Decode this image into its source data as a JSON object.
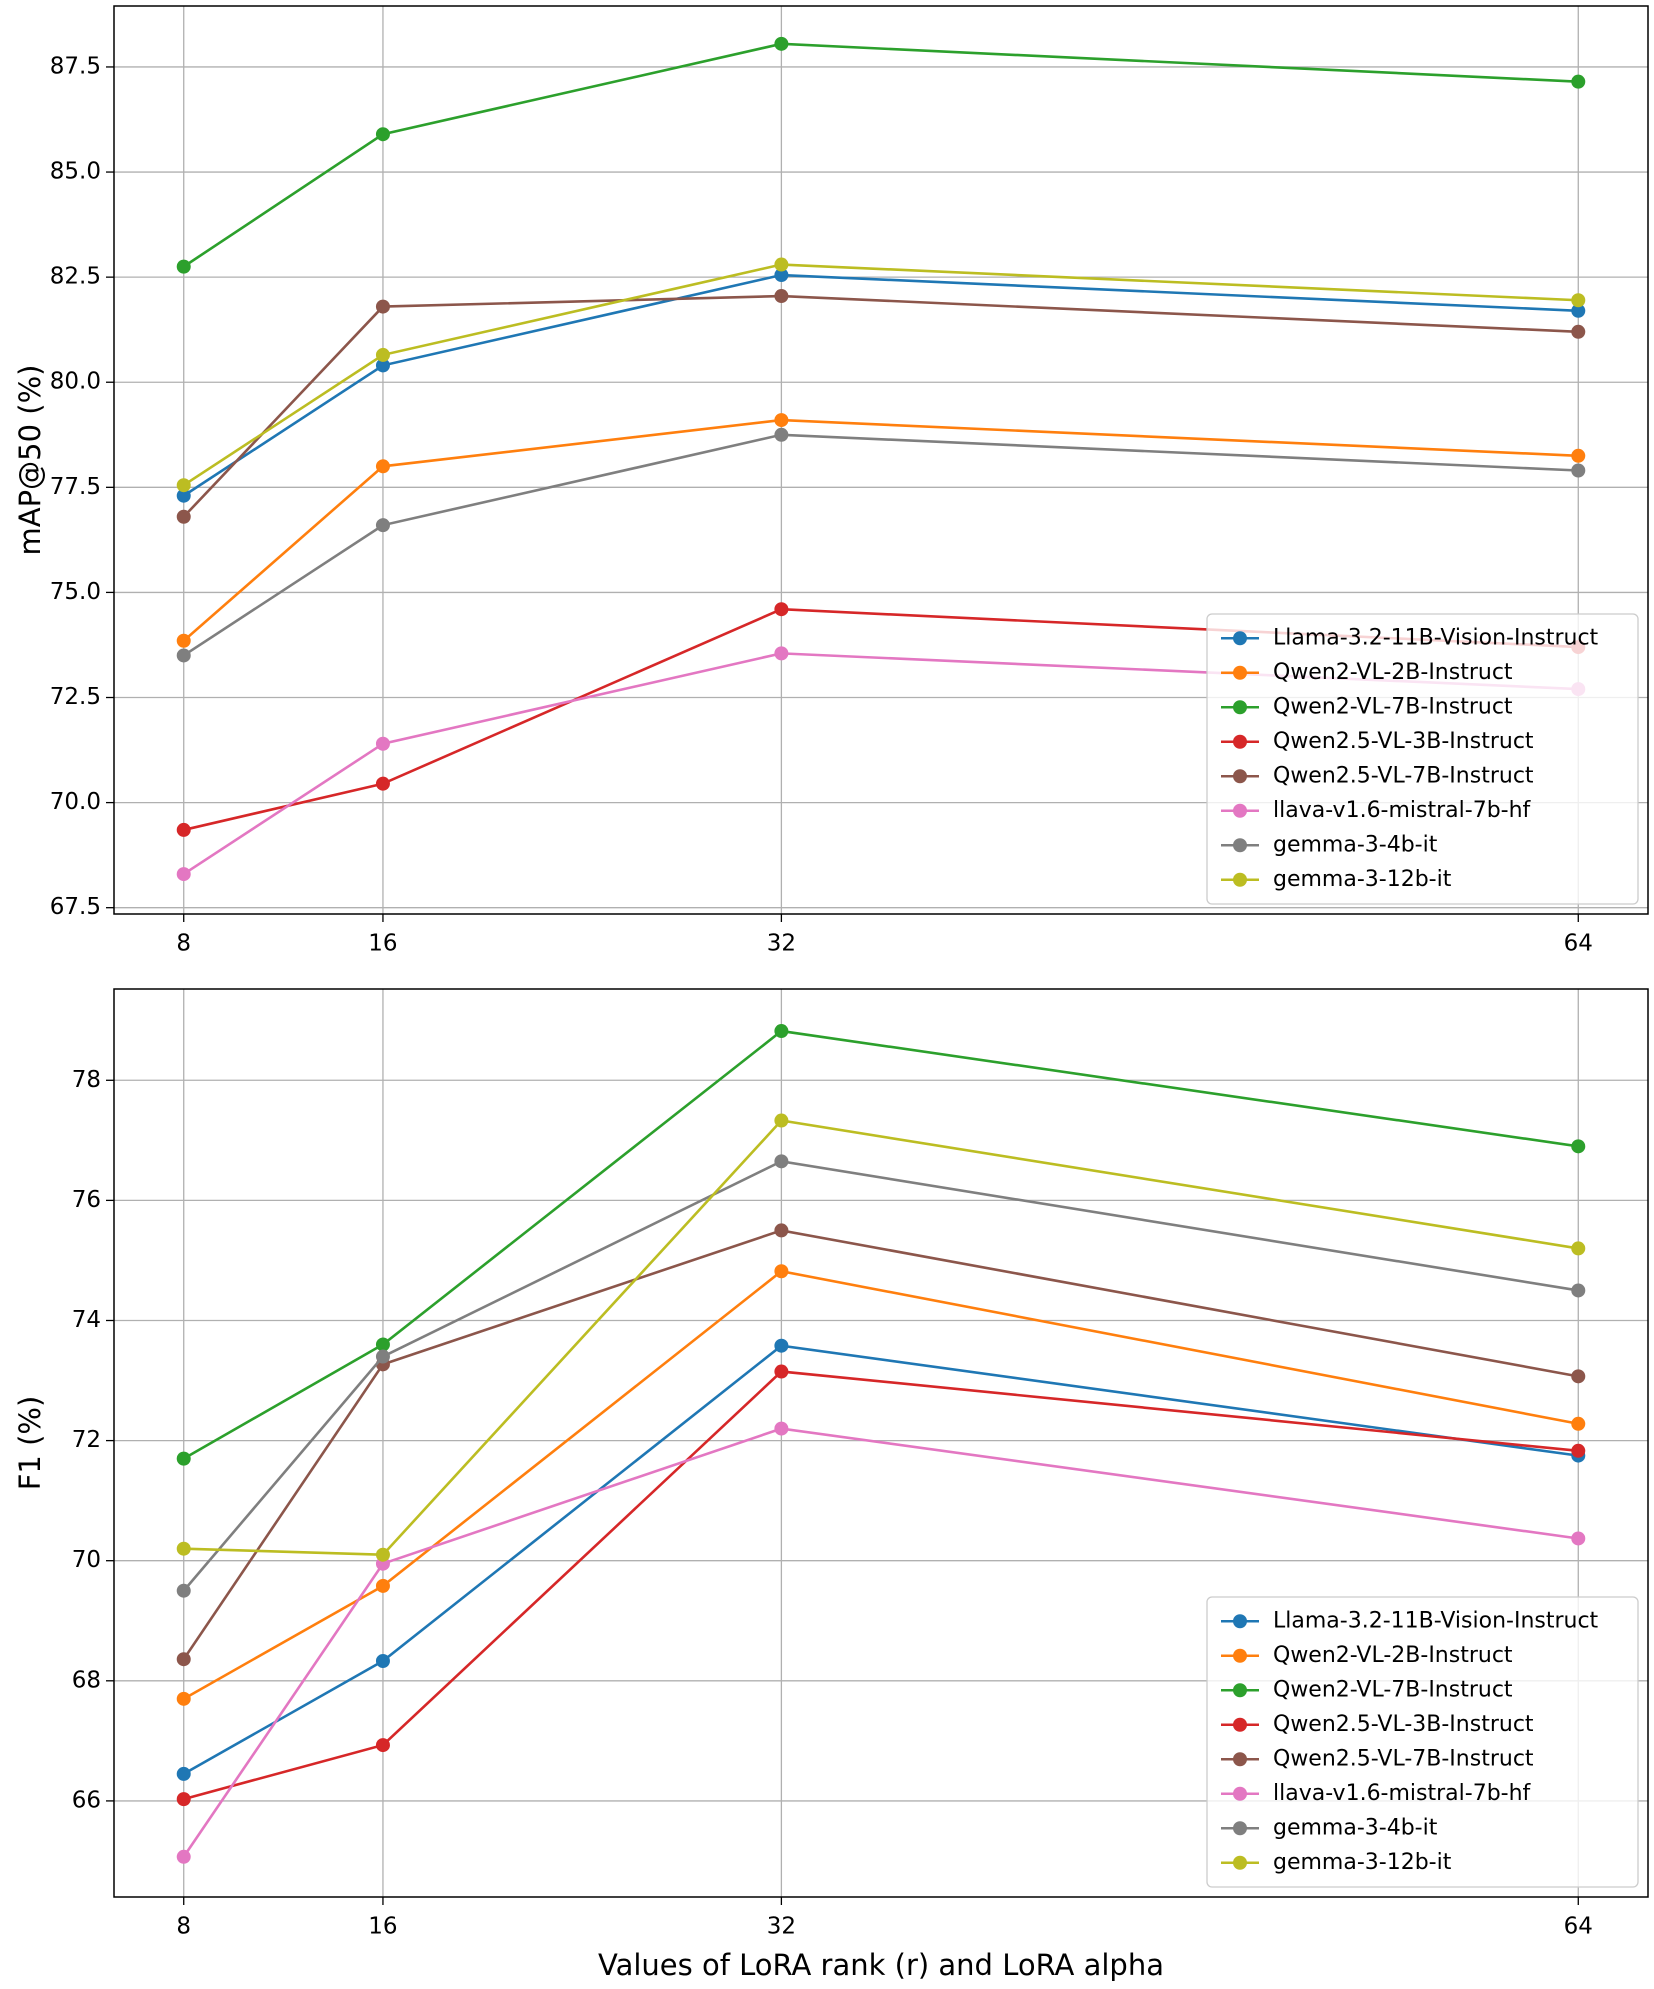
{
  "chart_data": [
    {
      "type": "line",
      "ylabel": "mAP@50 (%)",
      "x": [
        8,
        16,
        32,
        64
      ],
      "xlim": [
        5.2,
        66.8
      ],
      "xticks": [
        8,
        16,
        32,
        64
      ],
      "ylim": [
        67.35,
        88.95
      ],
      "yticks": [
        67.5,
        {
          "value": 70,
          "label": "70.0"
        },
        72.5,
        {
          "value": 75,
          "label": "75.0"
        },
        77.5,
        {
          "value": 80,
          "label": "80.0"
        },
        82.5,
        {
          "value": 85,
          "label": "85.0"
        },
        87.5
      ],
      "grid": true,
      "legend": "lower right",
      "series": [
        {
          "name": "Llama-3.2-11B-Vision-Instruct",
          "color": "#1f77b4",
          "values": [
            77.3,
            80.4,
            82.55,
            81.7
          ]
        },
        {
          "name": "Qwen2-VL-2B-Instruct",
          "color": "#ff7f0e",
          "values": [
            73.85,
            78.0,
            79.1,
            78.25
          ]
        },
        {
          "name": "Qwen2-VL-7B-Instruct",
          "color": "#2ca02c",
          "values": [
            82.75,
            85.9,
            88.05,
            87.15
          ]
        },
        {
          "name": "Qwen2.5-VL-3B-Instruct",
          "color": "#d62728",
          "values": [
            69.35,
            70.45,
            74.6,
            73.7
          ]
        },
        {
          "name": "Qwen2.5-VL-7B-Instruct",
          "color": "#8c564b",
          "values": [
            76.8,
            81.8,
            82.05,
            81.2
          ]
        },
        {
          "name": "llava-v1.6-mistral-7b-hf",
          "color": "#e377c2",
          "values": [
            68.3,
            71.4,
            73.55,
            72.7
          ]
        },
        {
          "name": "gemma-3-4b-it",
          "color": "#7f7f7f",
          "values": [
            73.5,
            76.6,
            78.75,
            77.9
          ]
        },
        {
          "name": "gemma-3-12b-it",
          "color": "#bcbd22",
          "values": [
            77.55,
            80.65,
            82.8,
            81.95
          ]
        }
      ]
    },
    {
      "type": "line",
      "ylabel": "F1 (%)",
      "xlabel": "Values of LoRA rank (r) and LoRA alpha",
      "x": [
        8,
        16,
        32,
        64
      ],
      "xlim": [
        5.2,
        66.8
      ],
      "xticks": [
        8,
        16,
        32,
        64
      ],
      "ylim": [
        64.4,
        79.52
      ],
      "yticks": [
        66,
        68,
        70,
        72,
        74,
        76,
        78
      ],
      "grid": true,
      "legend": "lower right",
      "series": [
        {
          "name": "Llama-3.2-11B-Vision-Instruct",
          "color": "#1f77b4",
          "values": [
            66.45,
            68.33,
            73.58,
            71.75
          ]
        },
        {
          "name": "Qwen2-VL-2B-Instruct",
          "color": "#ff7f0e",
          "values": [
            67.7,
            69.58,
            74.82,
            72.28
          ]
        },
        {
          "name": "Qwen2-VL-7B-Instruct",
          "color": "#2ca02c",
          "values": [
            71.7,
            73.6,
            78.82,
            76.9
          ]
        },
        {
          "name": "Qwen2.5-VL-3B-Instruct",
          "color": "#d62728",
          "values": [
            66.03,
            66.93,
            73.15,
            71.83
          ]
        },
        {
          "name": "Qwen2.5-VL-7B-Instruct",
          "color": "#8c564b",
          "values": [
            68.36,
            73.27,
            75.5,
            73.07
          ]
        },
        {
          "name": "llava-v1.6-mistral-7b-hf",
          "color": "#e377c2",
          "values": [
            65.07,
            69.95,
            72.2,
            70.37
          ]
        },
        {
          "name": "gemma-3-4b-it",
          "color": "#7f7f7f",
          "values": [
            69.5,
            73.4,
            76.65,
            74.5
          ]
        },
        {
          "name": "gemma-3-12b-it",
          "color": "#bcbd22",
          "values": [
            70.2,
            70.1,
            77.33,
            75.2
          ]
        }
      ]
    }
  ]
}
